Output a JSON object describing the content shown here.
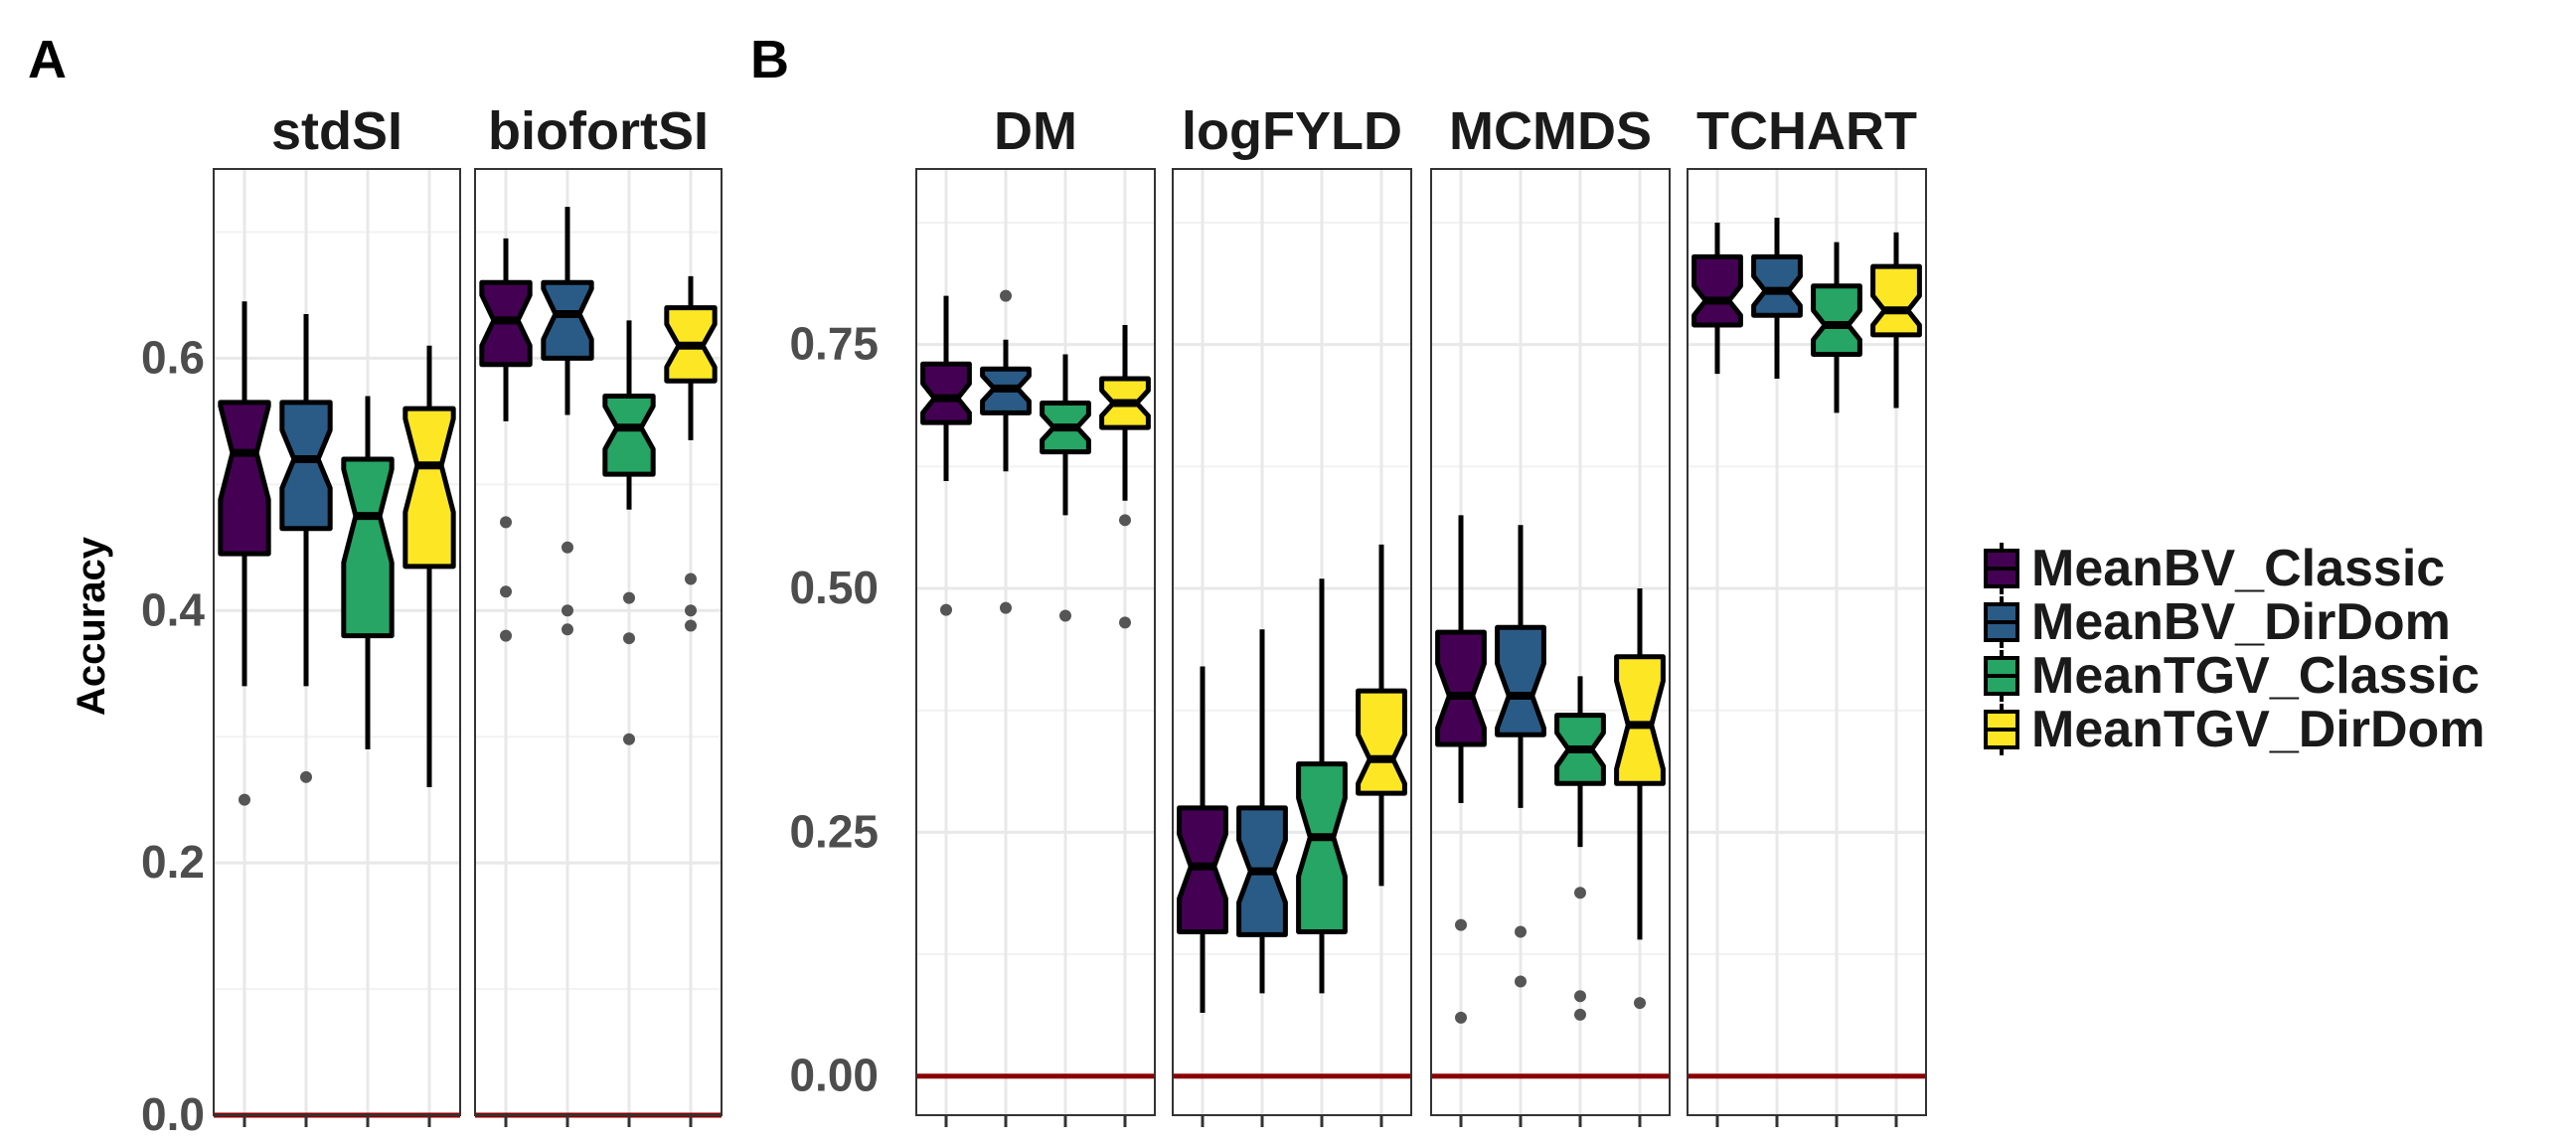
{
  "panel_labels": [
    "A",
    "B"
  ],
  "legend": {
    "entries": [
      "MeanBV_Classic",
      "MeanBV_DirDom",
      "MeanTGV_Classic",
      "MeanTGV_DirDom"
    ],
    "colors": [
      "#440154",
      "#2a5b86",
      "#26a565",
      "#fde725"
    ]
  },
  "colors": {
    "reference_line": "#8b0000",
    "grid": "#e8e8e8",
    "outlier": "#555555"
  },
  "chart_data": [
    {
      "type": "box",
      "panel": "A",
      "ylabel": "Accuracy",
      "ylim": [
        0,
        0.75
      ],
      "yticks": [
        0.0,
        0.2,
        0.4,
        0.6
      ],
      "ytick_labels": [
        "0.0",
        "0.2",
        "0.4",
        "0.6"
      ],
      "reference_line_y": 0,
      "grid": true,
      "facets": [
        {
          "title": "stdSI",
          "boxes": [
            {
              "series": "MeanBV_Classic",
              "whisker_low": 0.34,
              "q1": 0.445,
              "median": 0.525,
              "q3": 0.565,
              "whisker_high": 0.645,
              "notch_low": 0.488,
              "notch_high": 0.562,
              "outliers": [
                0.25
              ]
            },
            {
              "series": "MeanBV_DirDom",
              "whisker_low": 0.34,
              "q1": 0.465,
              "median": 0.52,
              "q3": 0.565,
              "whisker_high": 0.635,
              "notch_low": 0.497,
              "notch_high": 0.543,
              "outliers": [
                0.268
              ]
            },
            {
              "series": "MeanTGV_Classic",
              "whisker_low": 0.29,
              "q1": 0.38,
              "median": 0.475,
              "q3": 0.52,
              "whisker_high": 0.57,
              "notch_low": 0.438,
              "notch_high": 0.512,
              "outliers": []
            },
            {
              "series": "MeanTGV_DirDom",
              "whisker_low": 0.26,
              "q1": 0.435,
              "median": 0.515,
              "q3": 0.56,
              "whisker_high": 0.61,
              "notch_low": 0.478,
              "notch_high": 0.552,
              "outliers": []
            }
          ]
        },
        {
          "title": "biofortSI",
          "boxes": [
            {
              "series": "MeanBV_Classic",
              "whisker_low": 0.55,
              "q1": 0.595,
              "median": 0.63,
              "q3": 0.66,
              "whisker_high": 0.695,
              "notch_low": 0.61,
              "notch_high": 0.65,
              "outliers": [
                0.47,
                0.415,
                0.38
              ]
            },
            {
              "series": "MeanBV_DirDom",
              "whisker_low": 0.555,
              "q1": 0.6,
              "median": 0.635,
              "q3": 0.66,
              "whisker_high": 0.72,
              "notch_low": 0.615,
              "notch_high": 0.655,
              "outliers": [
                0.45,
                0.4,
                0.385
              ]
            },
            {
              "series": "MeanTGV_Classic",
              "whisker_low": 0.48,
              "q1": 0.508,
              "median": 0.545,
              "q3": 0.57,
              "whisker_high": 0.63,
              "notch_low": 0.528,
              "notch_high": 0.562,
              "outliers": [
                0.41,
                0.378,
                0.298
              ]
            },
            {
              "series": "MeanTGV_DirDom",
              "whisker_low": 0.535,
              "q1": 0.582,
              "median": 0.61,
              "q3": 0.64,
              "whisker_high": 0.665,
              "notch_low": 0.593,
              "notch_high": 0.627,
              "outliers": [
                0.425,
                0.4,
                0.388
              ]
            }
          ]
        }
      ]
    },
    {
      "type": "box",
      "panel": "B",
      "ylabel": "",
      "ylim": [
        -0.04,
        0.93
      ],
      "yticks": [
        0.0,
        0.25,
        0.5,
        0.75
      ],
      "ytick_labels": [
        "0.00",
        "0.25",
        "0.50",
        "0.75"
      ],
      "reference_line_y": 0,
      "grid": true,
      "facets": [
        {
          "title": "DM",
          "boxes": [
            {
              "series": "MeanBV_Classic",
              "whisker_low": 0.61,
              "q1": 0.67,
              "median": 0.695,
              "q3": 0.73,
              "whisker_high": 0.8,
              "notch_low": 0.68,
              "notch_high": 0.71,
              "outliers": [
                0.478
              ]
            },
            {
              "series": "MeanBV_DirDom",
              "whisker_low": 0.62,
              "q1": 0.68,
              "median": 0.705,
              "q3": 0.725,
              "whisker_high": 0.755,
              "notch_low": 0.692,
              "notch_high": 0.718,
              "outliers": [
                0.8,
                0.48
              ]
            },
            {
              "series": "MeanTGV_Classic",
              "whisker_low": 0.575,
              "q1": 0.64,
              "median": 0.665,
              "q3": 0.69,
              "whisker_high": 0.74,
              "notch_low": 0.652,
              "notch_high": 0.678,
              "outliers": [
                0.472
              ]
            },
            {
              "series": "MeanTGV_DirDom",
              "whisker_low": 0.59,
              "q1": 0.665,
              "median": 0.69,
              "q3": 0.715,
              "whisker_high": 0.77,
              "notch_low": 0.677,
              "notch_high": 0.703,
              "outliers": [
                0.57,
                0.465
              ]
            }
          ]
        },
        {
          "title": "logFYLD",
          "boxes": [
            {
              "series": "MeanBV_Classic",
              "whisker_low": 0.065,
              "q1": 0.148,
              "median": 0.215,
              "q3": 0.275,
              "whisker_high": 0.42,
              "notch_low": 0.182,
              "notch_high": 0.248,
              "outliers": []
            },
            {
              "series": "MeanBV_DirDom",
              "whisker_low": 0.085,
              "q1": 0.145,
              "median": 0.21,
              "q3": 0.275,
              "whisker_high": 0.458,
              "notch_low": 0.178,
              "notch_high": 0.242,
              "outliers": []
            },
            {
              "series": "MeanTGV_Classic",
              "whisker_low": 0.085,
              "q1": 0.148,
              "median": 0.245,
              "q3": 0.32,
              "whisker_high": 0.51,
              "notch_low": 0.205,
              "notch_high": 0.285,
              "outliers": []
            },
            {
              "series": "MeanTGV_DirDom",
              "whisker_low": 0.195,
              "q1": 0.29,
              "median": 0.325,
              "q3": 0.395,
              "whisker_high": 0.545,
              "notch_low": 0.3,
              "notch_high": 0.35,
              "outliers": []
            }
          ]
        },
        {
          "title": "MCMDS",
          "boxes": [
            {
              "series": "MeanBV_Classic",
              "whisker_low": 0.28,
              "q1": 0.34,
              "median": 0.39,
              "q3": 0.455,
              "whisker_high": 0.575,
              "notch_low": 0.357,
              "notch_high": 0.423,
              "outliers": [
                0.155,
                0.06
              ]
            },
            {
              "series": "MeanBV_DirDom",
              "whisker_low": 0.275,
              "q1": 0.35,
              "median": 0.39,
              "q3": 0.46,
              "whisker_high": 0.565,
              "notch_low": 0.357,
              "notch_high": 0.423,
              "outliers": [
                0.148,
                0.097
              ]
            },
            {
              "series": "MeanTGV_Classic",
              "whisker_low": 0.235,
              "q1": 0.3,
              "median": 0.335,
              "q3": 0.37,
              "whisker_high": 0.41,
              "notch_low": 0.318,
              "notch_high": 0.352,
              "outliers": [
                0.188,
                0.082,
                0.063
              ]
            },
            {
              "series": "MeanTGV_DirDom",
              "whisker_low": 0.14,
              "q1": 0.3,
              "median": 0.36,
              "q3": 0.43,
              "whisker_high": 0.5,
              "notch_low": 0.315,
              "notch_high": 0.405,
              "outliers": [
                0.075
              ]
            }
          ]
        },
        {
          "title": "TCHART",
          "boxes": [
            {
              "series": "MeanBV_Classic",
              "whisker_low": 0.72,
              "q1": 0.77,
              "median": 0.795,
              "q3": 0.84,
              "whisker_high": 0.875,
              "notch_low": 0.78,
              "notch_high": 0.81,
              "outliers": []
            },
            {
              "series": "MeanBV_DirDom",
              "whisker_low": 0.715,
              "q1": 0.78,
              "median": 0.805,
              "q3": 0.84,
              "whisker_high": 0.88,
              "notch_low": 0.79,
              "notch_high": 0.82,
              "outliers": []
            },
            {
              "series": "MeanTGV_Classic",
              "whisker_low": 0.68,
              "q1": 0.74,
              "median": 0.77,
              "q3": 0.81,
              "whisker_high": 0.855,
              "notch_low": 0.755,
              "notch_high": 0.785,
              "outliers": []
            },
            {
              "series": "MeanTGV_DirDom",
              "whisker_low": 0.685,
              "q1": 0.76,
              "median": 0.785,
              "q3": 0.83,
              "whisker_high": 0.865,
              "notch_low": 0.77,
              "notch_high": 0.8,
              "outliers": []
            }
          ]
        }
      ]
    }
  ]
}
